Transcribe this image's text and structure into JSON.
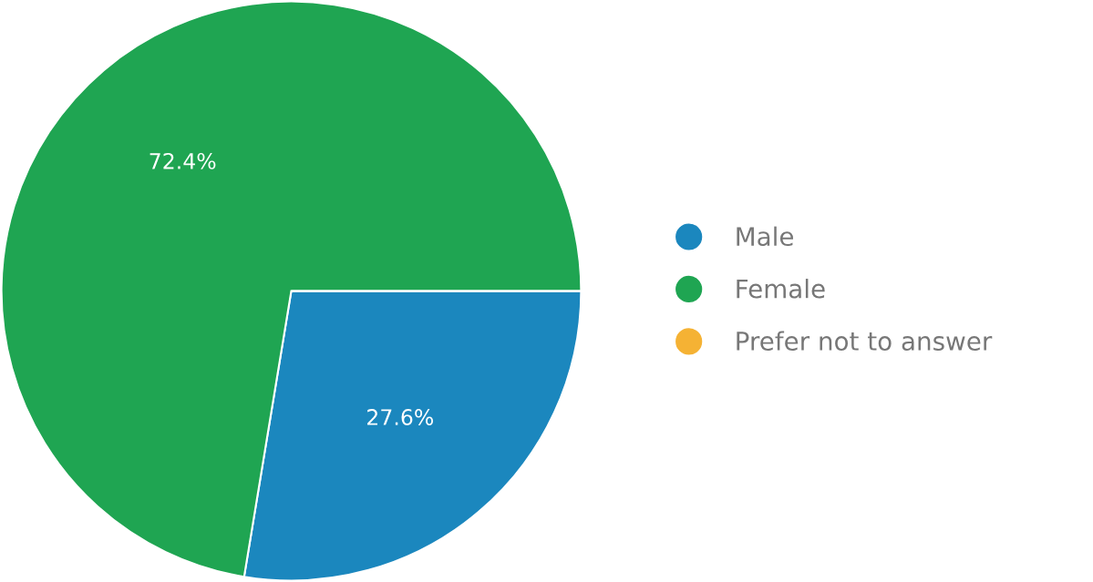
{
  "chart_data": {
    "type": "pie",
    "categories": [
      "Male",
      "Female",
      "Prefer not to answer"
    ],
    "values": [
      27.6,
      72.4,
      0
    ],
    "colors": [
      "#1b87be",
      "#1fa552",
      "#f5b234"
    ],
    "value_labels": [
      "27.6%",
      "72.4%",
      null
    ],
    "legend": "right"
  }
}
